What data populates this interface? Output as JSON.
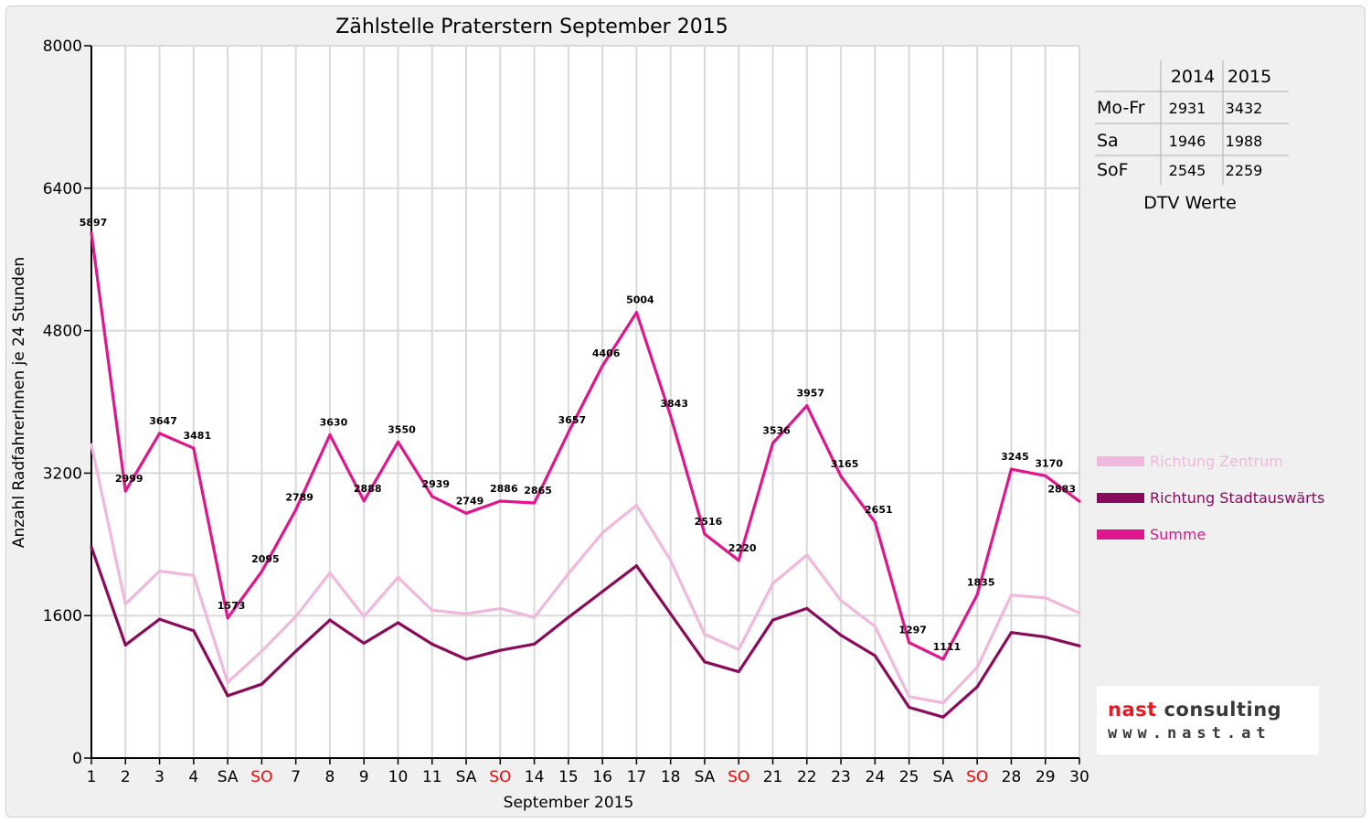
{
  "chart_data": {
    "type": "line",
    "title": "Zählstelle Praterstern September 2015",
    "xlabel": "September 2015",
    "ylabel": "Anzahl RadfahrerInnen je 24 Stunden",
    "ylim": [
      0,
      8000
    ],
    "yticks": [
      "0",
      "1600",
      "3200",
      "4800",
      "6400",
      "8000"
    ],
    "grid": true,
    "legend_position": "right",
    "categories": [
      "1",
      "2",
      "3",
      "4",
      "SA",
      "SO",
      "7",
      "8",
      "9",
      "10",
      "11",
      "SA",
      "SO",
      "14",
      "15",
      "16",
      "17",
      "18",
      "SA",
      "SO",
      "21",
      "22",
      "23",
      "24",
      "25",
      "SA",
      "SO",
      "28",
      "29",
      "30"
    ],
    "weekend_colors": {
      "SA": "#000000",
      "SO": "#ff0000"
    },
    "series": [
      {
        "name": "Richtung Zentrum",
        "color": "#f0b8dc",
        "values": [
          3520,
          1730,
          2100,
          2050,
          850,
          1200,
          1590,
          2080,
          1590,
          2030,
          1660,
          1620,
          1680,
          1580,
          2070,
          2530,
          2840,
          2220,
          1390,
          1220,
          1960,
          2280,
          1770,
          1480,
          690,
          620,
          1020,
          1830,
          1800,
          1630
        ]
      },
      {
        "name": "Richtung Stadtauswärts",
        "color": "#8a0a5c",
        "values": [
          2370,
          1270,
          1560,
          1430,
          700,
          830,
          1200,
          1550,
          1290,
          1520,
          1280,
          1110,
          1210,
          1280,
          1580,
          1870,
          2160,
          1620,
          1080,
          970,
          1550,
          1680,
          1380,
          1150,
          570,
          460,
          800,
          1410,
          1360,
          1260
        ]
      },
      {
        "name": "Summe",
        "color": "#e0168c",
        "values": [
          5897,
          2999,
          3647,
          3481,
          1573,
          2095,
          2789,
          3630,
          2888,
          3550,
          2939,
          2749,
          2886,
          2865,
          3657,
          4406,
          5004,
          3843,
          2516,
          2220,
          3536,
          3957,
          3165,
          2651,
          1297,
          1111,
          1835,
          3245,
          3170,
          2883
        ],
        "labels": [
          "5897",
          "2999",
          "3647",
          "3481",
          "1573",
          "2095",
          "2789",
          "3630",
          "2888",
          "3550",
          "2939",
          "2749",
          "2886",
          "2865",
          "3657",
          "4406",
          "5004",
          "3843",
          "2516",
          "2220",
          "3536",
          "3957",
          "3165",
          "2651",
          "1297",
          "1111",
          "1835",
          "3245",
          "3170",
          "2883"
        ]
      }
    ],
    "dtv_table": {
      "caption": "DTV Werte",
      "columns": [
        "2014",
        "2015"
      ],
      "rows": [
        {
          "label": "Mo-Fr",
          "values": [
            "2931",
            "3432"
          ]
        },
        {
          "label": "Sa",
          "values": [
            "1946",
            "1988"
          ]
        },
        {
          "label": "SoF",
          "values": [
            "2545",
            "2259"
          ]
        }
      ]
    }
  },
  "logo": {
    "name_part1": "nast",
    "name_part2": " consulting",
    "url": "www.nast.at"
  }
}
